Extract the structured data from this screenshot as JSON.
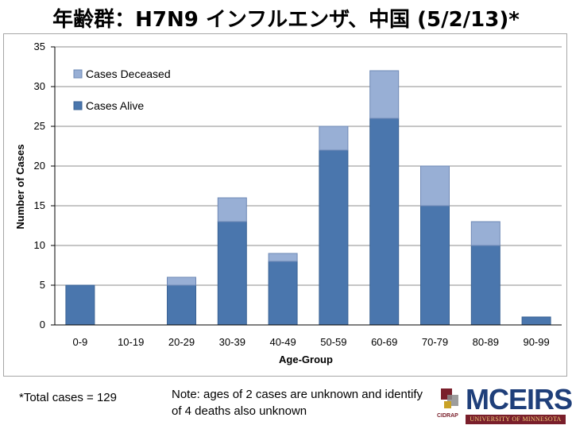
{
  "page": {
    "title": "年齢群：H7N9 インフルエンザ、中国 (5/2/13)*",
    "footnote_total": "*Total cases = 129",
    "footnote_note": "Note: ages of 2 cases are unknown and identify of 4 deaths also unknown",
    "logo_text": "MCEIRS",
    "logo_cidrap": "CIDRAP",
    "logo_university": "UNIVERSITY OF MINNESOTA"
  },
  "colors": {
    "alive": "#4a76ad",
    "deceased": "#98afd5",
    "alive_stroke": "#3b6394",
    "deceased_stroke": "#6e88b5",
    "grid": "#8c8c8c",
    "axis": "#000000"
  },
  "chart_data": {
    "type": "bar",
    "stacked": true,
    "title": "年齢群：H7N9 インフルエンザ、中国 (5/2/13)*",
    "xlabel": "Age-Group",
    "ylabel": "Number of Cases",
    "categories": [
      "0-9",
      "10-19",
      "20-29",
      "30-39",
      "40-49",
      "50-59",
      "60-69",
      "70-79",
      "80-89",
      "90-99"
    ],
    "ylim": [
      0,
      35
    ],
    "y_ticks": [
      0,
      5,
      10,
      15,
      20,
      25,
      30,
      35
    ],
    "grid": true,
    "legend_position": "top-left",
    "series": [
      {
        "name": "Cases Alive",
        "values": [
          5,
          0,
          5,
          13,
          8,
          22,
          26,
          15,
          10,
          1
        ]
      },
      {
        "name": "Cases Deceased",
        "values": [
          0,
          0,
          1,
          3,
          1,
          3,
          6,
          5,
          3,
          0
        ]
      }
    ]
  }
}
